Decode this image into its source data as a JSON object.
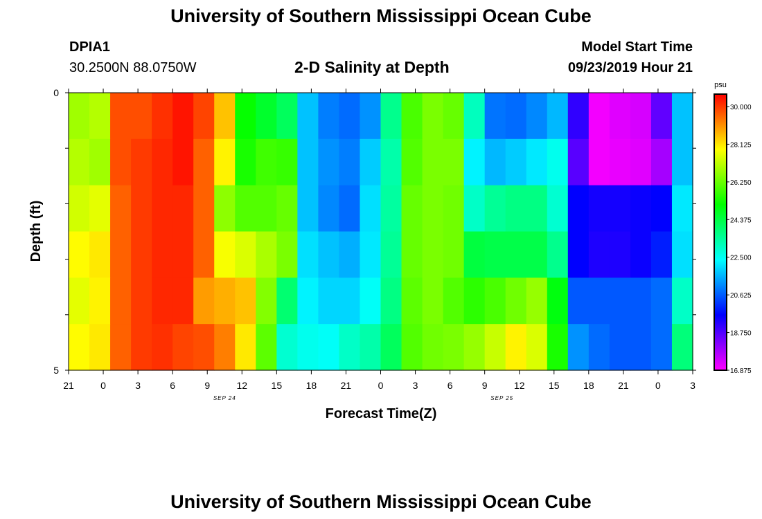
{
  "page": {
    "title_top": "University of Southern Mississippi Ocean Cube",
    "title_bottom": "University of Southern Mississippi Ocean Cube",
    "station_id": "DPIA1",
    "station_coords": "30.2500N 88.0750W",
    "plot_title": "2-D Salinity at Depth",
    "model_start_label": "Model Start Time",
    "model_start_value": "09/23/2019 Hour 21"
  },
  "chart_data": {
    "type": "heatmap",
    "title": "2-D Salinity at Depth",
    "xlabel": "Forecast Time(Z)",
    "ylabel": "Depth (ft)",
    "x_tick_labels": [
      "21",
      "0",
      "3",
      "6",
      "9",
      "12",
      "15",
      "18",
      "21",
      "0",
      "3",
      "6",
      "9",
      "12",
      "15",
      "18",
      "21",
      "0",
      "3"
    ],
    "x_date_labels": [
      {
        "label": "SEP 24",
        "at_tick": 4.5
      },
      {
        "label": "SEP 25",
        "at_tick": 12.5
      }
    ],
    "y_tick_labels": [
      {
        "label": "0",
        "depth": 0
      },
      {
        "label": "5",
        "depth": 5
      }
    ],
    "ylim": [
      5,
      0
    ],
    "x_start": "2019-09-23T21:00Z",
    "x_step_hours": 3,
    "x_step_count": 18,
    "colorbar": {
      "unit": "psu",
      "min": 16.875,
      "max": 30.0,
      "tick_labels": [
        "30.000",
        "28.125",
        "26.250",
        "24.375",
        "22.500",
        "20.625",
        "18.750",
        "16.875"
      ]
    },
    "depth_layers": [
      0,
      1,
      2,
      3,
      4,
      5
    ],
    "salinity_grid": [
      [
        26.4,
        26.6,
        29.2,
        29.2,
        29.5,
        29.8,
        29.3,
        28.0,
        24.8,
        24.3,
        23.8,
        21.5,
        20.8,
        20.6,
        21.0,
        23.3,
        25.5,
        26.0,
        25.8,
        22.8,
        20.7,
        20.6,
        20.9,
        21.4,
        19.0,
        17.0,
        17.2,
        17.3,
        18.5,
        21.5
      ],
      [
        26.6,
        26.4,
        29.2,
        29.4,
        29.6,
        29.8,
        29.0,
        27.5,
        25.0,
        25.4,
        25.3,
        21.5,
        21.0,
        20.8,
        21.6,
        23.0,
        25.6,
        26.0,
        26.0,
        22.0,
        21.4,
        21.6,
        21.9,
        22.3,
        18.6,
        17.0,
        17.1,
        17.2,
        17.8,
        21.5
      ],
      [
        26.9,
        27.1,
        29.0,
        29.4,
        29.6,
        29.6,
        29.0,
        26.2,
        25.6,
        25.6,
        25.8,
        21.5,
        20.9,
        20.6,
        21.8,
        23.1,
        25.8,
        26.0,
        25.9,
        22.7,
        23.2,
        23.4,
        23.4,
        22.6,
        19.5,
        19.3,
        19.3,
        19.4,
        19.5,
        21.9
      ],
      [
        27.4,
        27.6,
        29.0,
        29.4,
        29.6,
        29.6,
        29.0,
        27.3,
        27.0,
        26.5,
        26.0,
        21.8,
        21.5,
        21.3,
        21.9,
        23.2,
        25.8,
        26.0,
        25.9,
        24.1,
        24.0,
        24.0,
        24.0,
        23.3,
        19.5,
        19.2,
        19.2,
        19.4,
        19.8,
        21.8
      ],
      [
        27.1,
        27.5,
        29.0,
        29.4,
        29.6,
        29.6,
        28.4,
        28.2,
        28.0,
        26.1,
        23.6,
        22.0,
        21.7,
        21.7,
        22.2,
        23.4,
        25.7,
        26.0,
        25.6,
        25.2,
        25.5,
        25.9,
        26.3,
        24.6,
        20.4,
        20.4,
        20.4,
        20.4,
        20.6,
        22.7
      ],
      [
        27.4,
        27.6,
        29.0,
        29.4,
        29.5,
        29.3,
        29.2,
        28.7,
        27.6,
        25.7,
        22.6,
        22.3,
        22.2,
        22.7,
        23.0,
        23.8,
        25.6,
        25.9,
        26.0,
        26.3,
        26.8,
        27.5,
        27.0,
        25.0,
        21.0,
        20.6,
        20.4,
        20.4,
        20.6,
        23.5
      ]
    ],
    "grid": false
  }
}
